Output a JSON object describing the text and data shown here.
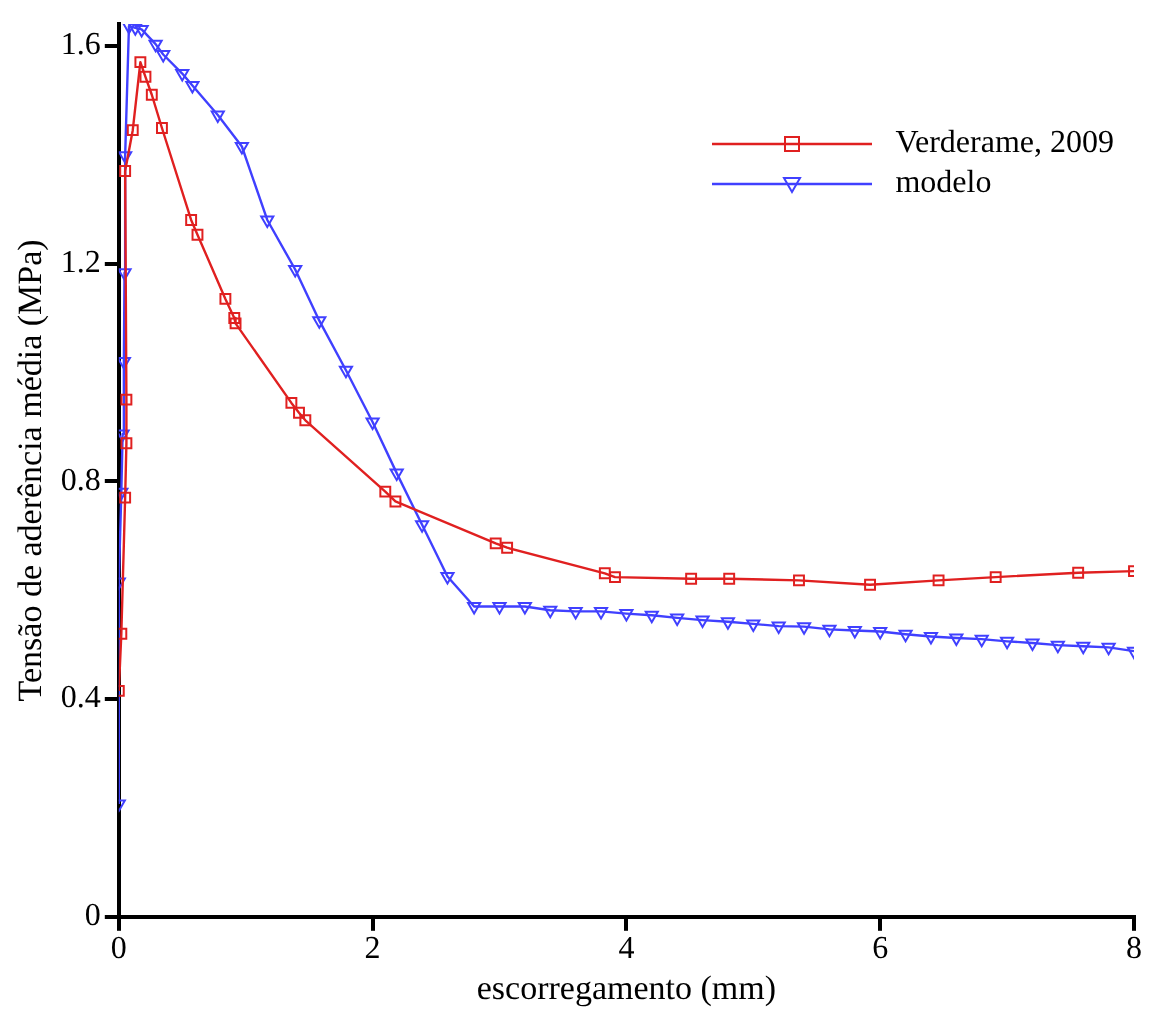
{
  "chart_data": {
    "type": "line",
    "xlabel": "escorregamento (mm)",
    "ylabel": "Tensão de aderência média (MPa)",
    "xlim": [
      0,
      8
    ],
    "xticks": [
      0,
      2,
      4,
      6,
      8
    ],
    "ylim": [
      0,
      1.64
    ],
    "yticks": [
      0,
      0.4,
      0.8,
      1.2,
      1.6
    ],
    "grid": false,
    "legend": "top right",
    "line_style": "solid",
    "series": [
      {
        "name": "Verderame, 2009",
        "color": "#e02020",
        "marker": "square",
        "x": [
          0,
          0.02,
          0.05,
          0.06,
          0.06,
          0.05,
          0.11,
          0.17,
          0.21,
          0.26,
          0.34,
          0.57,
          0.62,
          0.84,
          0.91,
          0.92,
          1.36,
          1.42,
          1.47,
          2.1,
          2.18,
          2.97,
          3.06,
          3.83,
          3.91,
          4.51,
          4.81,
          5.36,
          5.92,
          6.46,
          6.91,
          7.56,
          8.0
        ],
        "values": [
          0.415,
          0.52,
          0.77,
          0.87,
          0.95,
          1.37,
          1.445,
          1.57,
          1.543,
          1.51,
          1.449,
          1.28,
          1.253,
          1.135,
          1.1,
          1.09,
          0.944,
          0.926,
          0.912,
          0.781,
          0.763,
          0.686,
          0.678,
          0.631,
          0.624,
          0.621,
          0.621,
          0.618,
          0.61,
          0.618,
          0.624,
          0.632,
          0.635
        ]
      },
      {
        "name": "modelo",
        "color": "#4040ff",
        "marker": "triangle",
        "x": [
          0,
          0,
          0.02,
          0.03,
          0.04,
          0.045,
          0.05,
          0.08,
          0.13,
          0.18,
          0.29,
          0.35,
          0.5,
          0.58,
          0.78,
          0.97,
          1.17,
          1.39,
          1.58,
          1.79,
          2.0,
          2.19,
          2.39,
          2.59,
          2.8,
          3.0,
          3.2,
          3.4,
          3.6,
          3.8,
          4.0,
          4.2,
          4.4,
          4.6,
          4.8,
          5.0,
          5.2,
          5.4,
          5.6,
          5.8,
          6.0,
          6.2,
          6.4,
          6.6,
          6.8,
          7.0,
          7.2,
          7.4,
          7.6,
          7.8,
          8.0
        ],
        "values": [
          0.207,
          0.615,
          0.78,
          0.887,
          1.02,
          1.183,
          1.398,
          1.636,
          1.633,
          1.63,
          1.603,
          1.584,
          1.549,
          1.527,
          1.473,
          1.415,
          1.28,
          1.189,
          1.095,
          1.004,
          0.909,
          0.815,
          0.72,
          0.625,
          0.57,
          0.57,
          0.57,
          0.563,
          0.561,
          0.561,
          0.557,
          0.554,
          0.549,
          0.545,
          0.542,
          0.538,
          0.534,
          0.533,
          0.528,
          0.526,
          0.524,
          0.519,
          0.515,
          0.512,
          0.51,
          0.506,
          0.503,
          0.499,
          0.497,
          0.495,
          0.488
        ]
      }
    ]
  }
}
